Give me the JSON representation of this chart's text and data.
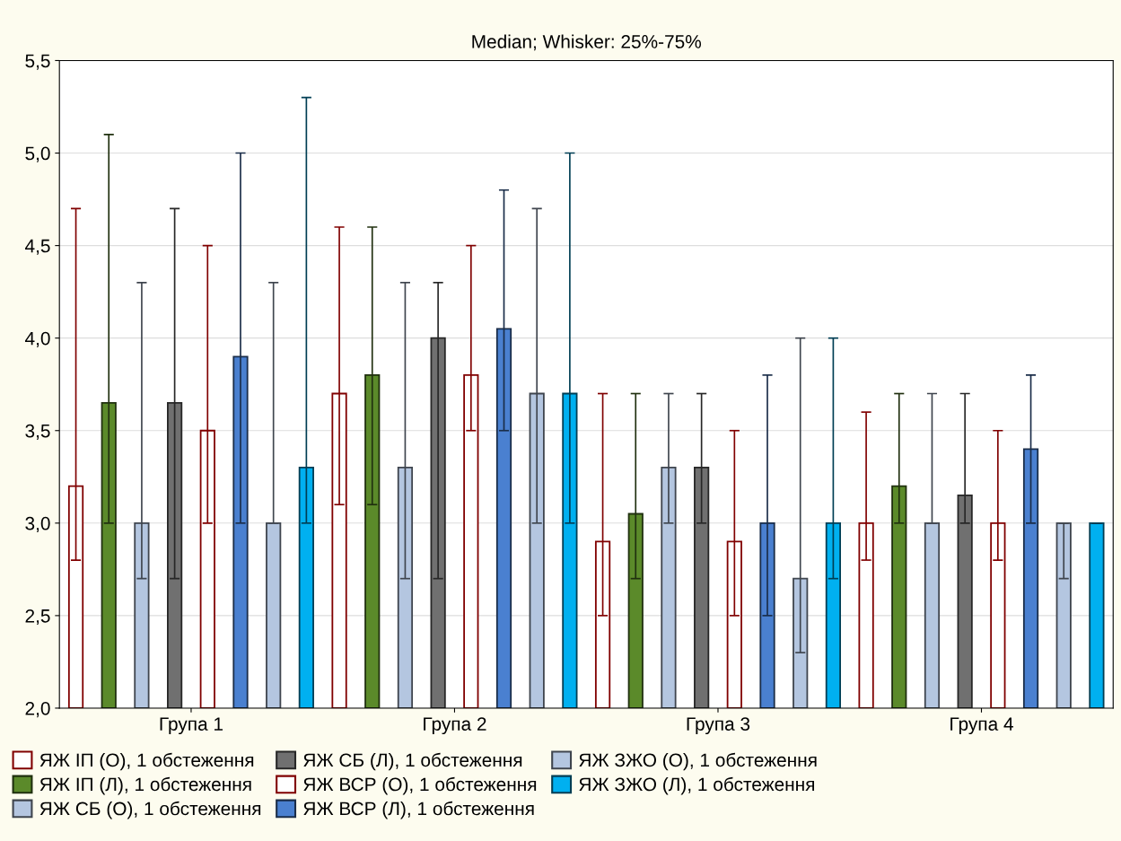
{
  "chart_data": {
    "type": "bar",
    "title": "Median; Whisker: 25%-75%",
    "categories": [
      "Група 1",
      "Група 2",
      "Група 3",
      "Група 4"
    ],
    "ylim": [
      2.0,
      5.5
    ],
    "yticks": [
      {
        "value": 2.0,
        "label": "2,0"
      },
      {
        "value": 2.5,
        "label": "2,5"
      },
      {
        "value": 3.0,
        "label": "3,0"
      },
      {
        "value": 3.5,
        "label": "3,5"
      },
      {
        "value": 4.0,
        "label": "4,0"
      },
      {
        "value": 4.5,
        "label": "4,5"
      },
      {
        "value": 5.0,
        "label": "5,0"
      },
      {
        "value": 5.5,
        "label": "5,5"
      }
    ],
    "grid": "y",
    "legend": "bottom",
    "series": [
      {
        "name": "ЯЖ ІП (О), 1 обстеження",
        "color": "#ffffff",
        "values": [
          3.2,
          3.7,
          2.9,
          3.0
        ],
        "errors": [
          [
            2.8,
            4.7
          ],
          [
            3.1,
            4.6
          ],
          [
            2.5,
            3.7
          ],
          [
            2.8,
            3.6
          ]
        ]
      },
      {
        "name": "ЯЖ ІП (Л), 1 обстеження",
        "color": "#5b8a2a",
        "values": [
          3.65,
          3.8,
          3.05,
          3.2
        ],
        "errors": [
          [
            3.0,
            5.1
          ],
          [
            3.1,
            4.6
          ],
          [
            2.7,
            3.7
          ],
          [
            3.0,
            3.7
          ]
        ]
      },
      {
        "name": "ЯЖ СБ (О), 1 обстеження",
        "color": "#b4c6e0",
        "values": [
          3.0,
          3.3,
          3.3,
          3.0
        ],
        "errors": [
          [
            2.7,
            4.3
          ],
          [
            2.7,
            4.3
          ],
          [
            3.0,
            3.7
          ],
          [
            3.0,
            3.7
          ]
        ]
      },
      {
        "name": "ЯЖ СБ (Л), 1 обстеження",
        "color": "#707070",
        "values": [
          3.65,
          4.0,
          3.3,
          3.15
        ],
        "errors": [
          [
            2.7,
            4.7
          ],
          [
            2.7,
            4.3
          ],
          [
            3.0,
            3.7
          ],
          [
            3.0,
            3.7
          ]
        ]
      },
      {
        "name": "ЯЖ ВСР (О), 1 обстеження",
        "color": "#ffffff",
        "values": [
          3.5,
          3.8,
          2.9,
          3.0
        ],
        "errors": [
          [
            3.0,
            4.5
          ],
          [
            3.5,
            4.5
          ],
          [
            2.5,
            3.5
          ],
          [
            2.8,
            3.5
          ]
        ]
      },
      {
        "name": "ЯЖ ВСР (Л), 1 обстеження",
        "color": "#4a80d0",
        "values": [
          3.9,
          4.05,
          3.0,
          3.4
        ],
        "errors": [
          [
            3.0,
            5.0
          ],
          [
            3.5,
            4.8
          ],
          [
            2.5,
            3.8
          ],
          [
            3.0,
            3.8
          ]
        ]
      },
      {
        "name": "ЯЖ ЗЖО (О), 1 обстеження",
        "color": "#b4c6e0",
        "values": [
          3.0,
          3.7,
          2.7,
          3.0
        ],
        "errors": [
          [
            3.0,
            4.3
          ],
          [
            3.0,
            4.7
          ],
          [
            2.3,
            4.0
          ],
          [
            2.7,
            3.0
          ]
        ]
      },
      {
        "name": "ЯЖ ЗЖО (Л), 1 обстеження",
        "color": "#00b0f0",
        "values": [
          3.3,
          3.7,
          3.0,
          3.0
        ],
        "errors": [
          [
            3.0,
            5.3
          ],
          [
            3.0,
            5.0
          ],
          [
            2.7,
            4.0
          ],
          [
            3.0,
            3.0
          ]
        ]
      }
    ]
  }
}
